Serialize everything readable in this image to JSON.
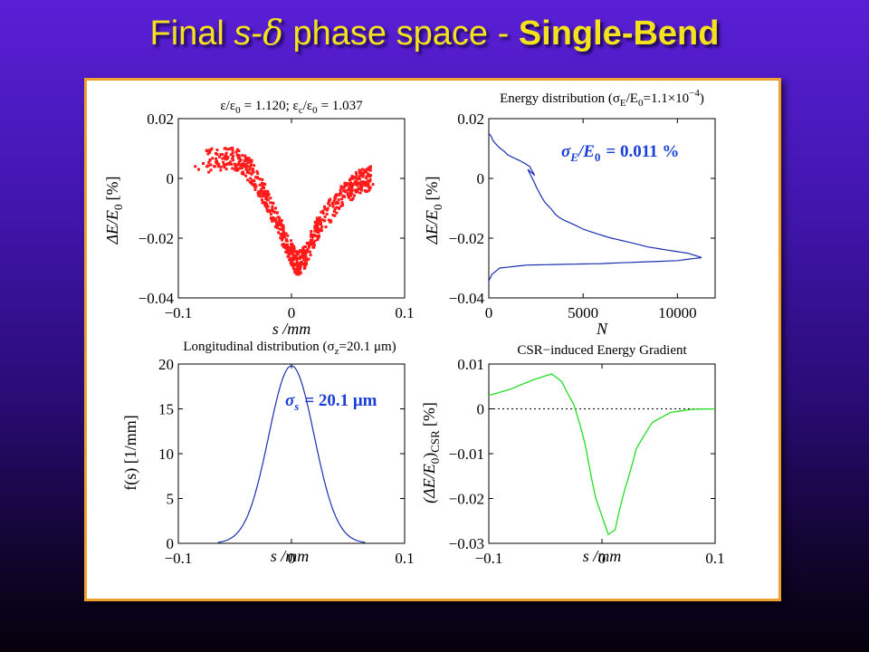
{
  "slide": {
    "title_pre": "Final ",
    "title_s": "s",
    "title_dash": "-",
    "title_delta": "δ",
    "title_mid": " phase space - ",
    "title_bold": "Single-Bend"
  },
  "colors": {
    "title": "#f4e21c",
    "panel_border": "#f0a030",
    "scatter": "#ff1a1a",
    "energy_line": "#1a2fb0",
    "long_line": "#1a2fb0",
    "csr_line": "#22dd22",
    "annotation": "#1a3fd6"
  },
  "chart_data": [
    {
      "id": "phase-space",
      "type": "scatter",
      "title_parts": {
        "eps": "ε/ε",
        "sub0": "0",
        "val1": "= 1.120; ε",
        "subc": "c",
        "eps2": "/ε",
        "sub0b": "0",
        "val2": "= 1.037"
      },
      "xlabel": "s /mm",
      "ylabel_parts": {
        "main": "ΔE/E",
        "sub": "0",
        "unit": "[%]"
      },
      "xlim": [
        -0.1,
        0.1
      ],
      "ylim": [
        -0.04,
        0.02
      ],
      "xticks": [
        "−0.1",
        "0",
        "0.1"
      ],
      "yticks": [
        "0.02",
        "0",
        "−0.02",
        "−0.04"
      ],
      "xtick_values": [
        -0.1,
        0,
        0.1
      ],
      "ytick_values": [
        0.02,
        0,
        -0.02,
        -0.04
      ],
      "centerline": [
        [
          -0.075,
          0.006
        ],
        [
          -0.05,
          0.007
        ],
        [
          -0.035,
          0.002
        ],
        [
          -0.02,
          -0.008
        ],
        [
          -0.005,
          -0.021
        ],
        [
          0.005,
          -0.029
        ],
        [
          0.012,
          -0.026
        ],
        [
          0.025,
          -0.015
        ],
        [
          0.045,
          -0.006
        ],
        [
          0.06,
          -0.001
        ],
        [
          0.07,
          0.0
        ]
      ],
      "band_halfwidth": 0.004,
      "outliers": [
        [
          -0.085,
          0.004
        ],
        [
          -0.082,
          0.003
        ],
        [
          -0.078,
          0.005
        ],
        [
          0.07,
          0.001
        ],
        [
          0.072,
          -0.002
        ],
        [
          0.068,
          -0.001
        ]
      ]
    },
    {
      "id": "energy-distribution",
      "type": "line",
      "title_parts": {
        "main": "Energy distribution (σ",
        "subE": "E",
        "mid": "/E",
        "sub0": "0",
        "val": "=1.1×10",
        "sup": "−4",
        "close": ")"
      },
      "xlabel": "N",
      "ylabel_parts": {
        "main": "ΔE/E",
        "sub": "0",
        "unit": "[%]"
      },
      "annotation_parts": {
        "main": "σ",
        "subE": "E",
        "mid": "/E",
        "sub0": "0",
        "val": "= 0.011 %"
      },
      "xlim": [
        0,
        12000
      ],
      "ylim": [
        -0.04,
        0.02
      ],
      "xticks": [
        "0",
        "5000",
        "10000"
      ],
      "yticks": [
        "0.02",
        "0",
        "−0.02",
        "−0.04"
      ],
      "xtick_values": [
        0,
        5000,
        10000
      ],
      "ytick_values": [
        0.02,
        0,
        -0.02,
        -0.04
      ],
      "series": [
        {
          "x": [
            0,
            200,
            600,
            1000,
            1600,
            2200,
            2400,
            2100,
            2500,
            3000,
            3500,
            4000,
            5000,
            6500,
            8500,
            10500,
            11300,
            10000,
            6000,
            2000,
            600,
            150,
            0
          ],
          "y": [
            0.015,
            0.013,
            0.01,
            0.008,
            0.006,
            0.004,
            0.001,
            0.003,
            -0.003,
            -0.008,
            -0.012,
            -0.014,
            -0.017,
            -0.02,
            -0.023,
            -0.025,
            -0.0265,
            -0.0275,
            -0.0285,
            -0.029,
            -0.03,
            -0.032,
            -0.035
          ]
        }
      ]
    },
    {
      "id": "longitudinal-distribution",
      "type": "line",
      "title_parts": {
        "main": "Longitudinal distribution (σ",
        "sub": "z",
        "val": "=20.1 μm)"
      },
      "xlabel": "s /mm",
      "ylabel": "f(s) [1/mm]",
      "annotation_parts": {
        "main": "σ",
        "sub": "s",
        "val": "= 20.1 μm"
      },
      "xlim": [
        -0.1,
        0.1
      ],
      "ylim": [
        0,
        20
      ],
      "xticks": [
        "−0.1",
        "0",
        "0.1"
      ],
      "yticks": [
        "20",
        "15",
        "10",
        "5",
        "0"
      ],
      "xtick_values": [
        -0.1,
        0,
        0.1
      ],
      "ytick_values": [
        20,
        15,
        10,
        5,
        0
      ],
      "gaussian": {
        "mean": 0.0,
        "sigma": 0.0201,
        "peak": 19.8,
        "xmin": -0.065,
        "xmax": 0.065
      }
    },
    {
      "id": "csr-energy-gradient",
      "type": "line",
      "title": "CSR−induced Energy Gradient",
      "xlabel": "s /mm",
      "ylabel_parts": {
        "open": "(ΔE/E",
        "sub0": "0",
        "close": ")",
        "subcsr": "CSR",
        "unit": "[%]"
      },
      "xlim": [
        -0.1,
        0.1
      ],
      "ylim": [
        -0.03,
        0.01
      ],
      "xticks": [
        "−0.1",
        "0",
        "0.1"
      ],
      "yticks": [
        "0.01",
        "0",
        "−0.01",
        "−0.02",
        "−0.03"
      ],
      "xtick_values": [
        -0.1,
        0,
        0.1
      ],
      "ytick_values": [
        0.01,
        0,
        -0.01,
        -0.02,
        -0.03
      ],
      "series": [
        {
          "x": [
            -0.1,
            -0.08,
            -0.06,
            -0.045,
            -0.035,
            -0.025,
            -0.015,
            -0.005,
            0.005,
            0.012,
            0.02,
            0.03,
            0.045,
            0.06,
            0.08,
            0.1
          ],
          "y": [
            0.003,
            0.0045,
            0.0065,
            0.0078,
            0.006,
            0.001,
            -0.008,
            -0.02,
            -0.028,
            -0.027,
            -0.018,
            -0.009,
            -0.003,
            -0.0008,
            -0.0001,
            0.0
          ]
        }
      ],
      "reference_line": 0
    }
  ]
}
